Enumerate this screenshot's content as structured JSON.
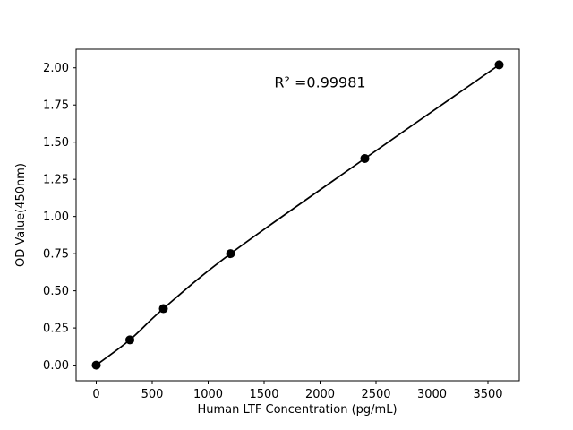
{
  "chart_data": {
    "type": "scatter",
    "title": "",
    "xlabel": "Human LTF Concentration (pg/mL)",
    "ylabel": "OD Value(450nm)",
    "x": [
      0,
      300,
      600,
      1200,
      2400,
      3600
    ],
    "y": [
      0.0,
      0.17,
      0.38,
      0.75,
      1.39,
      2.02
    ],
    "line": true,
    "marker": "circle",
    "marker_color": "#000000",
    "line_color": "#000000",
    "xlim": [
      -180,
      3780
    ],
    "ylim": [
      -0.105,
      2.125
    ],
    "xticks": [
      0,
      500,
      1000,
      1500,
      2000,
      2500,
      3000,
      3500
    ],
    "yticks": [
      0.0,
      0.25,
      0.5,
      0.75,
      1.0,
      1.25,
      1.5,
      1.75,
      2.0
    ],
    "ytick_decimals": 2,
    "grid": false,
    "legend": null,
    "annotation": {
      "text": "R² =0.99981",
      "x": 2000,
      "y": 1.87
    }
  }
}
